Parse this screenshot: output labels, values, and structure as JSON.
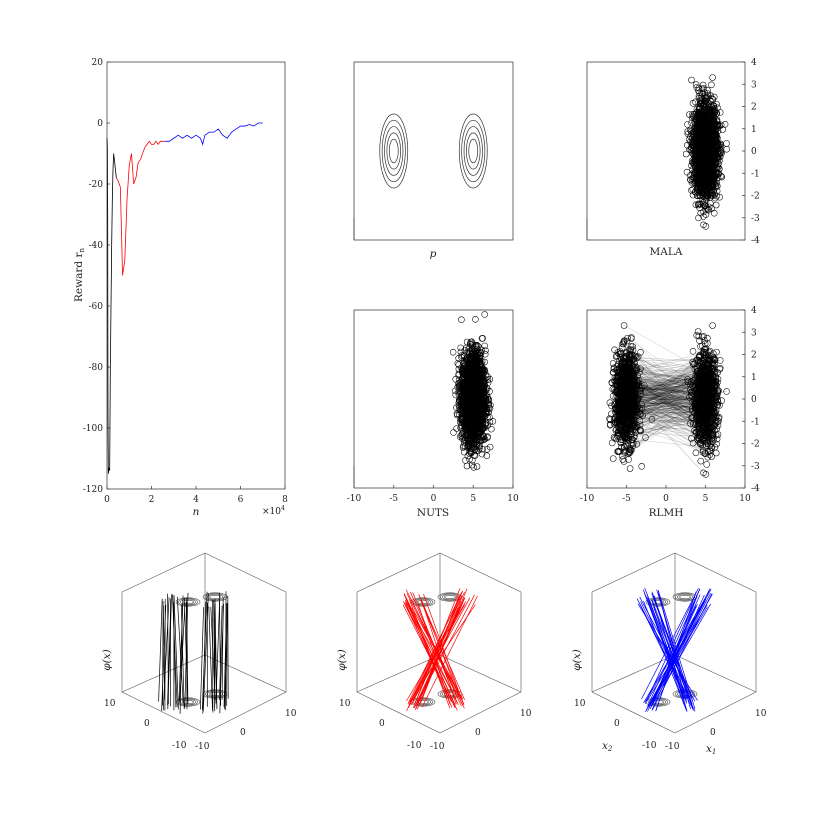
{
  "colors": {
    "phase1": "#000000",
    "phase2": "#ff0000",
    "phase3": "#0000ff",
    "axis": "#444444"
  },
  "chart_data": [
    {
      "id": "reward",
      "type": "line",
      "xlabel": "n",
      "ylabel": "Reward r_n",
      "x_exponent_label": "×10⁴",
      "xlim": [
        0,
        80000
      ],
      "ylim": [
        -120,
        20
      ],
      "xticks": [
        0,
        2,
        4,
        6,
        8
      ],
      "yticks": [
        20,
        0,
        -20,
        -40,
        -60,
        -80,
        -100,
        -120
      ],
      "series": [
        {
          "color": "black",
          "x": [
            0,
            150,
            300,
            450,
            600,
            900,
            1200,
            1500,
            1800,
            2100,
            2400,
            2700,
            3000,
            3300,
            3600,
            3900,
            4200
          ],
          "y": [
            -5,
            -8,
            -30,
            -97,
            -115,
            -113,
            -114,
            -80,
            -60,
            -40,
            -25,
            -15,
            -10,
            -12,
            -14,
            -16,
            -18
          ]
        },
        {
          "color": "red",
          "x": [
            4200,
            5000,
            6000,
            7000,
            8000,
            9000,
            10000,
            11000,
            12000,
            13000,
            14000,
            15000,
            16000,
            17000,
            18000,
            19000,
            20000,
            21000,
            22000,
            23000,
            24000,
            25000,
            26000
          ],
          "y": [
            -18,
            -19,
            -21,
            -50,
            -45,
            -25,
            -14,
            -10,
            -20,
            -18,
            -13,
            -12,
            -10,
            -8,
            -7,
            -6,
            -7,
            -7,
            -6,
            -7,
            -6,
            -6,
            -6
          ]
        },
        {
          "color": "blue",
          "x": [
            26000,
            28000,
            30000,
            32000,
            34000,
            36000,
            38000,
            40000,
            42000,
            43000,
            44000,
            46000,
            48000,
            50000,
            52000,
            54000,
            56000,
            58000,
            60000,
            62000,
            64000,
            66000,
            68000,
            70000
          ],
          "y": [
            -6,
            -6,
            -5,
            -4,
            -5,
            -4,
            -5,
            -4,
            -5,
            -7,
            -4,
            -3,
            -3,
            -2,
            -4,
            -5,
            -3,
            -2,
            -1,
            -1,
            -0.5,
            -1,
            0,
            0
          ]
        }
      ]
    },
    {
      "id": "p",
      "type": "contour",
      "xlabel": "p",
      "modes": [
        {
          "x": -5,
          "y": 0
        },
        {
          "x": 5,
          "y": 0
        }
      ],
      "levels": 5,
      "xlim": [
        -10,
        10
      ],
      "ylim": [
        -4,
        4
      ]
    },
    {
      "id": "mala",
      "type": "scatter",
      "xlabel": "MALA",
      "yticks": [
        1,
        0,
        -1,
        -2,
        -3,
        -4,
        3,
        2
      ],
      "yticks_sorted": [
        -4,
        -3,
        -2,
        -1,
        0,
        1,
        2,
        3,
        4
      ],
      "xlim": [
        -10,
        10
      ],
      "ylim": [
        -4,
        4
      ],
      "clusters": [
        {
          "mean_x": 5,
          "mean_y": 0,
          "sd_x": 1.0,
          "sd_y": 1.0,
          "n": 2200
        }
      ]
    },
    {
      "id": "nuts",
      "type": "scatter",
      "xlabel": "NUTS",
      "xticks": [
        -10,
        -5,
        0,
        5,
        10
      ],
      "xlim": [
        -10,
        10
      ],
      "ylim": [
        -4,
        4
      ],
      "clusters": [
        {
          "mean_x": 5,
          "mean_y": 0,
          "sd_x": 1.0,
          "sd_y": 1.0,
          "n": 2200
        }
      ]
    },
    {
      "id": "rlmh",
      "type": "scatter",
      "xlabel": "RLMH",
      "xticks": [
        -10,
        -5,
        0,
        5,
        10
      ],
      "yticks_sorted": [
        -4,
        -3,
        -2,
        -1,
        0,
        1,
        2,
        3,
        4
      ],
      "xlim": [
        -10,
        10
      ],
      "ylim": [
        -4,
        4
      ],
      "clusters": [
        {
          "mean_x": -5,
          "mean_y": 0,
          "sd_x": 1.0,
          "sd_y": 1.0,
          "n": 1100
        },
        {
          "mean_x": 5,
          "mean_y": 0,
          "sd_x": 1.0,
          "sd_y": 1.0,
          "n": 1100
        }
      ],
      "jumps": 350
    },
    {
      "id": "policy-black",
      "type": "3d-lines",
      "color": "black",
      "pattern": "vertical",
      "zlabel": "φ(x)",
      "tick_a": [
        "10",
        "0",
        "-10"
      ],
      "tick_b": [
        "-10",
        "0",
        "10"
      ]
    },
    {
      "id": "policy-red",
      "type": "3d-lines",
      "color": "red",
      "pattern": "cross",
      "zlabel": "φ(x)",
      "tick_a": [
        "10",
        "0",
        "-10"
      ],
      "tick_b": [
        "-10",
        "0",
        "10"
      ]
    },
    {
      "id": "policy-blue",
      "type": "3d-lines",
      "color": "blue",
      "pattern": "cross",
      "zlabel": "φ(x)",
      "tick_a": [
        "10",
        "0",
        "-10"
      ],
      "tick_b": [
        "-10",
        "0",
        "10"
      ],
      "xlabel_a": "x₂",
      "xlabel_b": "x₁"
    }
  ],
  "labels": {
    "reward_y": "Reward r",
    "reward_y_sub": "n",
    "reward_x": "n",
    "x_exp": "×10",
    "x_exp_sup": "4",
    "p": "p",
    "mala": "MALA",
    "nuts": "NUTS",
    "rlmh": "RLMH",
    "phi": "φ(x)",
    "x2": "x",
    "x2_sub": "2",
    "x1": "x",
    "x1_sub": "1"
  }
}
